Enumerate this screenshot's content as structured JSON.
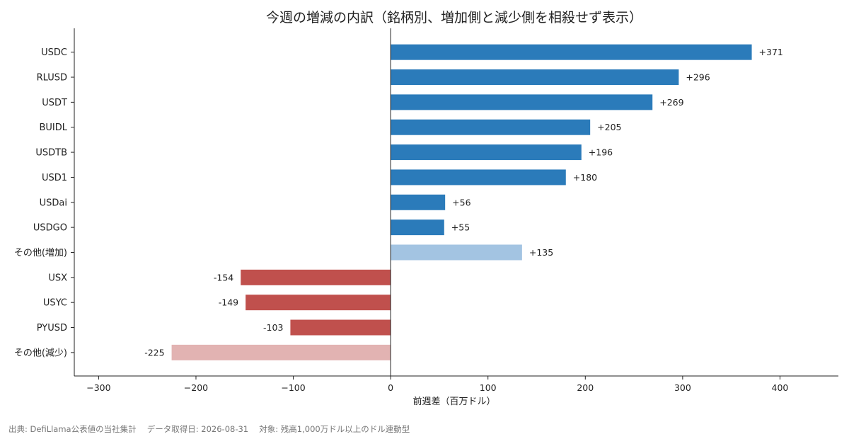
{
  "chart_data": {
    "type": "bar",
    "orientation": "horizontal",
    "title": "今週の増減の内訳（銘柄別、増加側と減少側を相殺せず表示）",
    "xlabel": "前週差（百万ドル）",
    "ylabel": "",
    "xlim": [
      -325,
      460
    ],
    "xticks": [
      -300,
      -200,
      -100,
      0,
      100,
      200,
      300,
      400
    ],
    "xtick_labels": [
      "−300",
      "−200",
      "−100",
      "0",
      "100",
      "200",
      "300",
      "400"
    ],
    "categories": [
      "USDC",
      "RLUSD",
      "USDT",
      "BUIDL",
      "USDTB",
      "USD1",
      "USDai",
      "USDGO",
      "その他(増加)",
      "USX",
      "USYC",
      "PYUSD",
      "その他(減少)"
    ],
    "values": [
      371,
      296,
      269,
      205,
      196,
      180,
      56,
      55,
      135,
      -154,
      -149,
      -103,
      -225
    ],
    "value_labels": [
      "+371",
      "+296",
      "+269",
      "+205",
      "+196",
      "+180",
      "+56",
      "+55",
      "+135",
      "-154",
      "-149",
      "-103",
      "-225"
    ],
    "bar_colors": [
      "#2b7bba",
      "#2b7bba",
      "#2b7bba",
      "#2b7bba",
      "#2b7bba",
      "#2b7bba",
      "#2b7bba",
      "#2b7bba",
      "#a3c4e2",
      "#c0504d",
      "#c0504d",
      "#c0504d",
      "#e2b3b2"
    ],
    "grid": false,
    "legend": "none"
  },
  "footer": "出典: DefiLlama公表値の当社集計　 データ取得日: 2026-08-31　 対象: 残高1,000万ドル以上のドル連動型"
}
